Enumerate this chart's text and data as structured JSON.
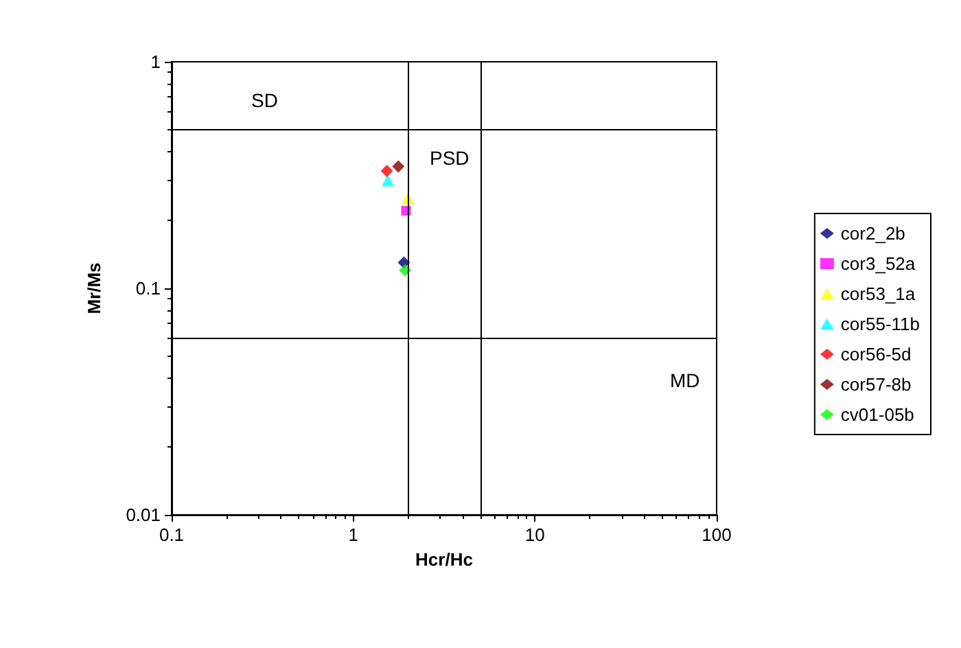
{
  "chart_data": {
    "type": "scatter",
    "xlabel": "Hcr/Hc",
    "ylabel": "Mr/Ms",
    "log": "xy",
    "xlim": [
      0.1,
      100
    ],
    "ylim": [
      0.01,
      1
    ],
    "xticks": [
      0.1,
      1,
      10,
      100
    ],
    "yticks": [
      0.01,
      0.1,
      1
    ],
    "grid": false,
    "legend": "right",
    "series": [
      {
        "name": "cor2_2b",
        "color": "#000080",
        "marker": "diamond",
        "x": [
          1.9
        ],
        "values": [
          0.13
        ]
      },
      {
        "name": "cor3_52a",
        "color": "#ff00ff",
        "marker": "square",
        "x": [
          1.95
        ],
        "values": [
          0.22
        ]
      },
      {
        "name": "cor53_1a",
        "color": "#ffff00",
        "marker": "triangle",
        "x": [
          2.0
        ],
        "values": [
          0.25
        ]
      },
      {
        "name": "cor55-11b",
        "color": "#00ffff",
        "marker": "triangle",
        "x": [
          1.55
        ],
        "values": [
          0.3
        ]
      },
      {
        "name": "cor56-5d",
        "color": "#ff0000",
        "marker": "diamond",
        "x": [
          1.53
        ],
        "values": [
          0.33
        ]
      },
      {
        "name": "cor57-8b",
        "color": "#800000",
        "marker": "diamond",
        "x": [
          1.77
        ],
        "values": [
          0.345
        ]
      },
      {
        "name": "cv01-05b",
        "color": "#00ff00",
        "marker": "diamond",
        "x": [
          1.93
        ],
        "values": [
          0.12
        ]
      }
    ],
    "ref_lines": [
      {
        "axis": "x",
        "value": 2
      },
      {
        "axis": "x",
        "value": 5
      },
      {
        "axis": "y",
        "value": 0.5
      },
      {
        "axis": "y",
        "value": 0.06
      }
    ],
    "annotations": [
      "SD",
      "PSD",
      "MD"
    ]
  }
}
